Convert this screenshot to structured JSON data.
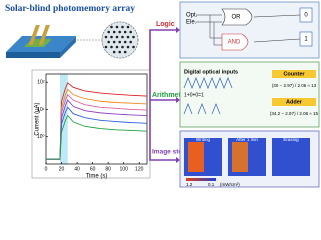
{
  "title": "Solar-blind photomemory array",
  "plot": {
    "type": "line",
    "y_label": "Current (μA)",
    "x_label": "Time (s)",
    "log_y": true,
    "x": [
      0,
      10,
      18,
      20,
      25,
      28,
      35,
      50,
      70,
      90,
      110,
      130
    ],
    "xlim": [
      0,
      130
    ],
    "xticks": [
      0,
      20,
      40,
      60,
      80,
      100,
      120
    ],
    "ylim": [
      0.1,
      200
    ],
    "yticks": [
      {
        "value": 1,
        "label": "10⁰"
      },
      {
        "value": 10,
        "label": "10¹"
      },
      {
        "value": 100,
        "label": "10²"
      }
    ],
    "series": [
      {
        "color": "#e02020",
        "values": [
          0.15,
          0.15,
          0.15,
          20,
          60,
          95,
          65,
          48,
          40,
          36,
          33,
          31
        ]
      },
      {
        "color": "#f08a20",
        "values": [
          0.15,
          0.15,
          0.15,
          12,
          35,
          55,
          35,
          25,
          20,
          18,
          17,
          16
        ]
      },
      {
        "color": "#e060a0",
        "values": [
          0.15,
          0.15,
          0.15,
          8,
          22,
          35,
          22,
          15,
          12,
          11,
          10,
          9.5
        ]
      },
      {
        "color": "#9040c0",
        "values": [
          0.15,
          0.15,
          0.15,
          5,
          14,
          22,
          13,
          9,
          7.5,
          6.8,
          6.3,
          6
        ]
      },
      {
        "color": "#3060e0",
        "values": [
          0.15,
          0.15,
          0.15,
          3,
          8,
          12,
          7,
          5,
          4,
          3.6,
          3.3,
          3.1
        ]
      },
      {
        "color": "#20a040",
        "values": [
          0.15,
          0.15,
          0.15,
          1.5,
          4,
          6,
          3.5,
          2.4,
          2,
          1.8,
          1.7,
          1.6
        ]
      }
    ]
  },
  "logic": {
    "label": "Logic",
    "inputs": [
      "Opt.",
      "Ele."
    ],
    "gates": [
      "OR",
      "AND"
    ],
    "outputs": [
      "0",
      "1"
    ]
  },
  "arithmetic": {
    "label": "Arithmetic",
    "inputs_title": "Digital optical inputs",
    "sequence": "1+0+0=1",
    "counter": {
      "title": "Counter",
      "formula": "(30 − 2.97) / 2.06 ≈ 13"
    },
    "adder": {
      "title": "Adder",
      "formula": "(34.2 − 2.97) / 2.06 ≈ 15"
    }
  },
  "image": {
    "label": "Image storage",
    "panels": [
      "Writing",
      "After 1 min",
      "Erasing"
    ],
    "scale_max": "1.2",
    "scale_min": "0.1",
    "scale_unit": "(mW/cm²)"
  }
}
